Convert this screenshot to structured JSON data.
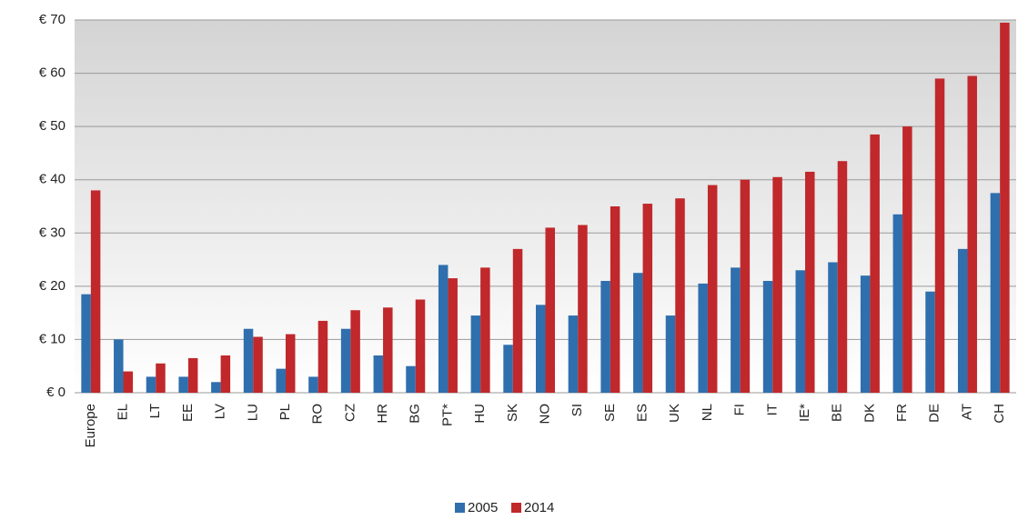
{
  "chart_data": {
    "type": "bar",
    "categories": [
      "Europe",
      "EL",
      "LT",
      "EE",
      "LV",
      "LU",
      "PL",
      "RO",
      "CZ",
      "HR",
      "BG",
      "PT*",
      "HU",
      "SK",
      "NO",
      "SI",
      "SE",
      "ES",
      "UK",
      "NL",
      "FI",
      "IT",
      "IE*",
      "BE",
      "DK",
      "FR",
      "DE",
      "AT",
      "CH"
    ],
    "series": [
      {
        "name": "2005",
        "color": "#2f6fae",
        "values": [
          18.5,
          10,
          3,
          3,
          2,
          12,
          4.5,
          3,
          12,
          7,
          5,
          24,
          14.5,
          9,
          16.5,
          14.5,
          21,
          22.5,
          14.5,
          20.5,
          23.5,
          21,
          23,
          24.5,
          22,
          33.5,
          19,
          27,
          37.5
        ]
      },
      {
        "name": "2014",
        "color": "#c0282b",
        "values": [
          38,
          4,
          5.5,
          6.5,
          7,
          10.5,
          11,
          13.5,
          15.5,
          16,
          17.5,
          21.5,
          23.5,
          27,
          31,
          31.5,
          35,
          35.5,
          36.5,
          39,
          40,
          40.5,
          41.5,
          43.5,
          48.5,
          50,
          59,
          59.5,
          69.5
        ]
      }
    ],
    "ylim": [
      0,
      70
    ],
    "yticks": [
      {
        "value": 0,
        "label": "€ 0"
      },
      {
        "value": 10,
        "label": "€ 10"
      },
      {
        "value": 20,
        "label": "€ 20"
      },
      {
        "value": 30,
        "label": "€ 30"
      },
      {
        "value": 40,
        "label": "€ 40"
      },
      {
        "value": 50,
        "label": "€ 50"
      },
      {
        "value": 60,
        "label": "€ 60"
      },
      {
        "value": 70,
        "label": "€ 70"
      }
    ],
    "grid": true
  }
}
